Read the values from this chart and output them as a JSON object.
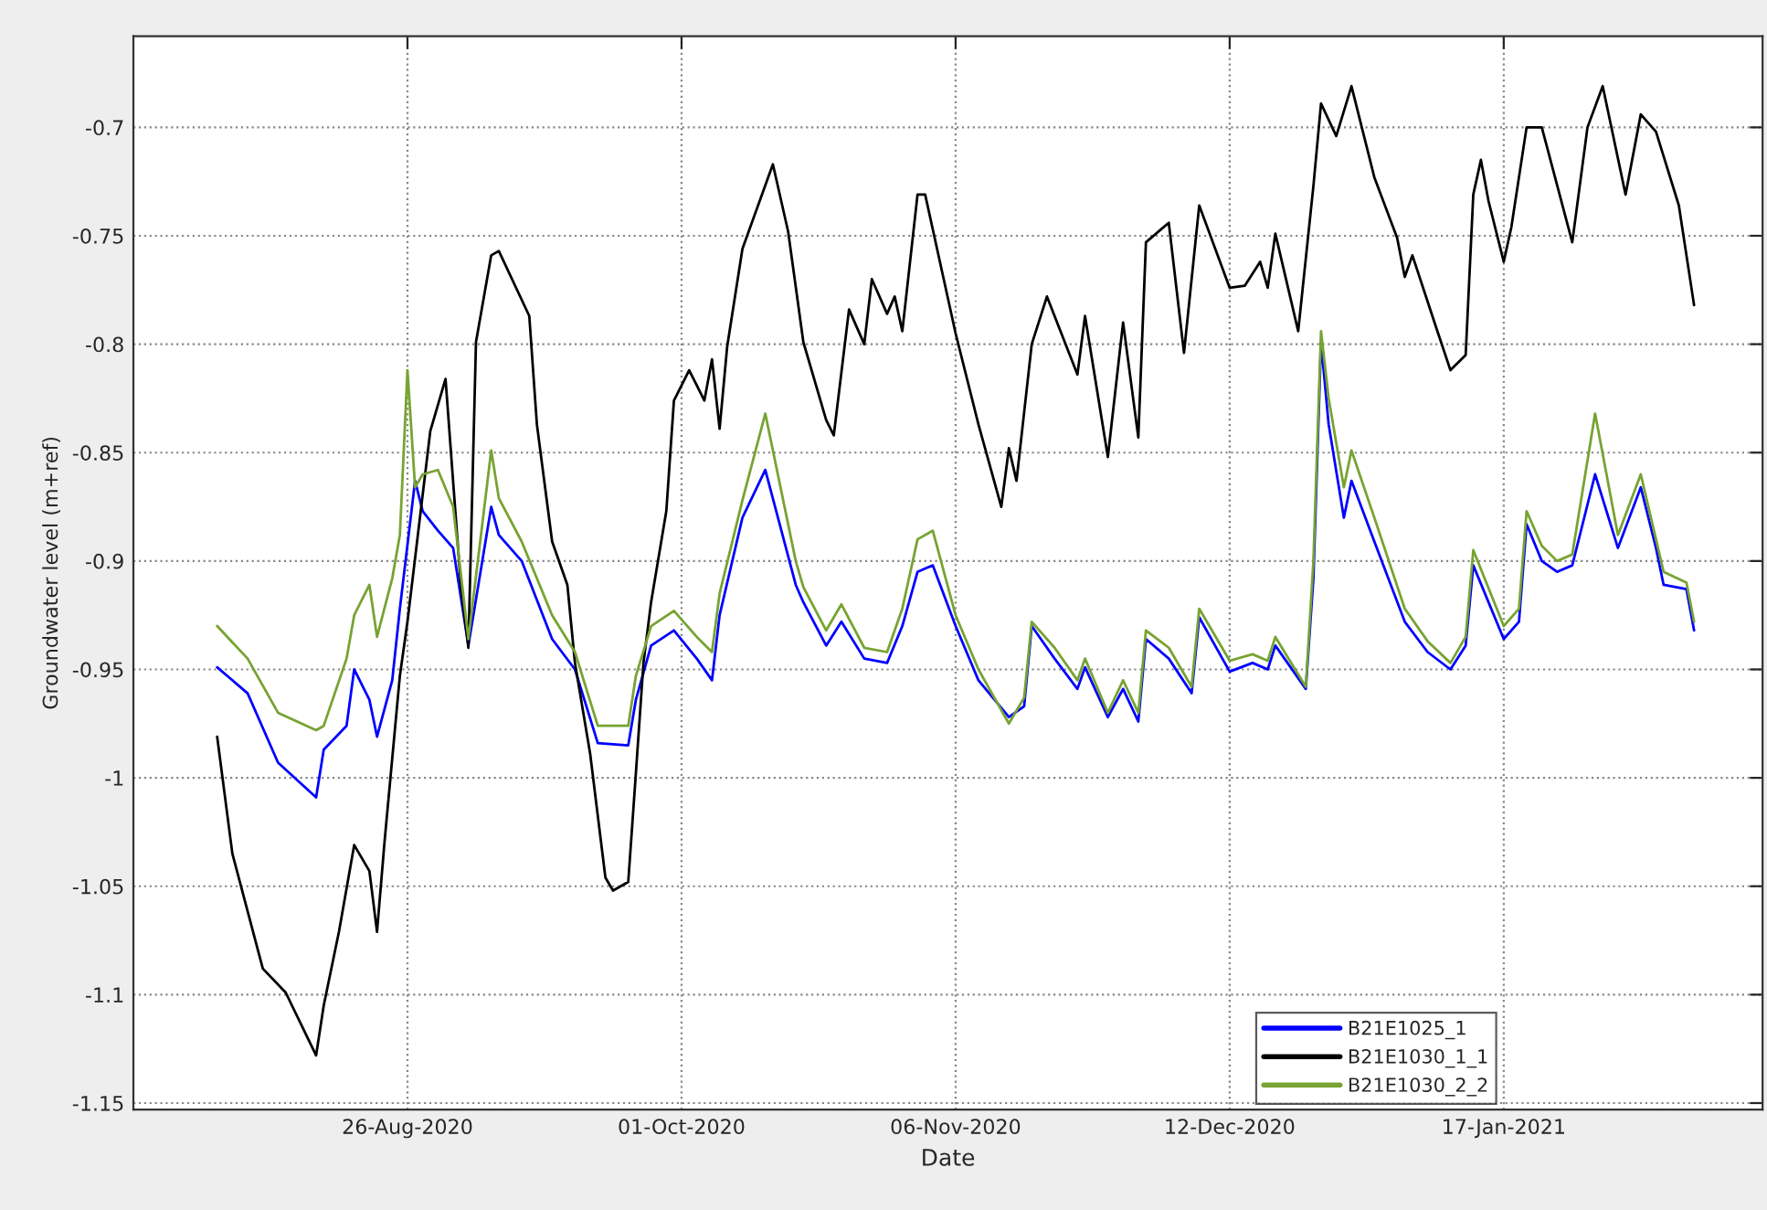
{
  "chart_data": {
    "type": "line",
    "xlabel": "Date",
    "ylabel": "Groundwater level (m+ref)",
    "xlim": [
      "2020-07-21",
      "2021-02-20"
    ],
    "ylim": [
      -1.153,
      -0.658
    ],
    "xticks": [
      {
        "value": "2020-08-26",
        "label": "26-Aug-2020"
      },
      {
        "value": "2020-10-01",
        "label": "01-Oct-2020"
      },
      {
        "value": "2020-11-06",
        "label": "06-Nov-2020"
      },
      {
        "value": "2020-12-12",
        "label": "12-Dec-2020"
      },
      {
        "value": "2021-01-17",
        "label": "17-Jan-2021"
      }
    ],
    "yticks": [
      -1.15,
      -1.1,
      -1.05,
      -1,
      -0.95,
      -0.9,
      -0.85,
      -0.8,
      -0.75,
      -0.7
    ],
    "grid": true,
    "legend": "bottom right",
    "line_style": "solid",
    "series": [
      {
        "name": "B21E1025_1",
        "color": "#0000ff",
        "x": [
          "2020-08-01",
          "2020-08-05",
          "2020-08-09",
          "2020-08-14",
          "2020-08-15",
          "2020-08-18",
          "2020-08-19",
          "2020-08-21",
          "2020-08-22",
          "2020-08-24",
          "2020-08-25",
          "2020-08-27",
          "2020-08-28",
          "2020-08-30",
          "2020-09-01",
          "2020-09-03",
          "2020-09-06",
          "2020-09-07",
          "2020-09-10",
          "2020-09-14",
          "2020-09-17",
          "2020-09-20",
          "2020-09-24",
          "2020-09-25",
          "2020-09-27",
          "2020-09-30",
          "2020-10-03",
          "2020-10-05",
          "2020-10-06",
          "2020-10-09",
          "2020-10-12",
          "2020-10-16",
          "2020-10-17",
          "2020-10-20",
          "2020-10-22",
          "2020-10-25",
          "2020-10-28",
          "2020-10-30",
          "2020-11-01",
          "2020-11-03",
          "2020-11-06",
          "2020-11-09",
          "2020-11-13",
          "2020-11-15",
          "2020-11-16",
          "2020-11-19",
          "2020-11-22",
          "2020-11-23",
          "2020-11-26",
          "2020-11-28",
          "2020-11-30",
          "2020-12-01",
          "2020-12-04",
          "2020-12-07",
          "2020-12-08",
          "2020-12-12",
          "2020-12-15",
          "2020-12-17",
          "2020-12-18",
          "2020-12-22",
          "2020-12-23",
          "2020-12-24",
          "2020-12-25",
          "2020-12-27",
          "2020-12-28",
          "2020-12-31",
          "2021-01-04",
          "2021-01-07",
          "2021-01-10",
          "2021-01-12",
          "2021-01-13",
          "2021-01-17",
          "2021-01-19",
          "2021-01-20",
          "2021-01-22",
          "2021-01-24",
          "2021-01-26",
          "2021-01-29",
          "2021-02-01",
          "2021-02-04",
          "2021-02-06",
          "2021-02-07",
          "2021-02-10",
          "2021-02-11"
        ],
        "values": [
          -0.949,
          -0.961,
          -0.993,
          -1.009,
          -0.987,
          -0.976,
          -0.95,
          -0.964,
          -0.981,
          -0.955,
          -0.922,
          -0.863,
          -0.877,
          -0.886,
          -0.894,
          -0.939,
          -0.875,
          -0.888,
          -0.9,
          -0.936,
          -0.95,
          -0.984,
          -0.985,
          -0.964,
          -0.939,
          -0.932,
          -0.945,
          -0.955,
          -0.925,
          -0.88,
          -0.858,
          -0.911,
          -0.919,
          -0.939,
          -0.928,
          -0.945,
          -0.947,
          -0.93,
          -0.905,
          -0.902,
          -0.93,
          -0.955,
          -0.972,
          -0.967,
          -0.93,
          -0.945,
          -0.959,
          -0.949,
          -0.972,
          -0.959,
          -0.974,
          -0.936,
          -0.945,
          -0.961,
          -0.926,
          -0.951,
          -0.947,
          -0.95,
          -0.939,
          -0.959,
          -0.908,
          -0.799,
          -0.837,
          -0.88,
          -0.863,
          -0.891,
          -0.928,
          -0.942,
          -0.95,
          -0.939,
          -0.902,
          -0.936,
          -0.928,
          -0.883,
          -0.9,
          -0.905,
          -0.902,
          -0.86,
          -0.894,
          -0.866,
          -0.894,
          -0.911,
          -0.913,
          -0.932
        ]
      },
      {
        "name": "B21E1030_1_1",
        "color": "#000000",
        "x": [
          "2020-08-01",
          "2020-08-03",
          "2020-08-07",
          "2020-08-10",
          "2020-08-14",
          "2020-08-15",
          "2020-08-17",
          "2020-08-19",
          "2020-08-21",
          "2020-08-22",
          "2020-08-23",
          "2020-08-25",
          "2020-08-26",
          "2020-08-29",
          "2020-08-31",
          "2020-09-02",
          "2020-09-03",
          "2020-09-04",
          "2020-09-06",
          "2020-09-07",
          "2020-09-11",
          "2020-09-12",
          "2020-09-14",
          "2020-09-16",
          "2020-09-17",
          "2020-09-19",
          "2020-09-21",
          "2020-09-22",
          "2020-09-24",
          "2020-09-25",
          "2020-09-26",
          "2020-09-27",
          "2020-09-29",
          "2020-09-30",
          "2020-10-02",
          "2020-10-04",
          "2020-10-05",
          "2020-10-06",
          "2020-10-07",
          "2020-10-09",
          "2020-10-13",
          "2020-10-15",
          "2020-10-17",
          "2020-10-20",
          "2020-10-21",
          "2020-10-23",
          "2020-10-25",
          "2020-10-26",
          "2020-10-28",
          "2020-10-29",
          "2020-10-30",
          "2020-11-01",
          "2020-11-02",
          "2020-11-06",
          "2020-11-09",
          "2020-11-12",
          "2020-11-13",
          "2020-11-14",
          "2020-11-16",
          "2020-11-18",
          "2020-11-22",
          "2020-11-23",
          "2020-11-26",
          "2020-11-28",
          "2020-11-30",
          "2020-12-01",
          "2020-12-04",
          "2020-12-06",
          "2020-12-08",
          "2020-12-12",
          "2020-12-14",
          "2020-12-16",
          "2020-12-17",
          "2020-12-18",
          "2020-12-21",
          "2020-12-23",
          "2020-12-24",
          "2020-12-26",
          "2020-12-28",
          "2020-12-31",
          "2021-01-03",
          "2021-01-04",
          "2021-01-05",
          "2021-01-08",
          "2021-01-10",
          "2021-01-12",
          "2021-01-13",
          "2021-01-14",
          "2021-01-15",
          "2021-01-17",
          "2021-01-18",
          "2021-01-20",
          "2021-01-22",
          "2021-01-26",
          "2021-01-28",
          "2021-01-30",
          "2021-02-02",
          "2021-02-04",
          "2021-02-06",
          "2021-02-09",
          "2021-02-11"
        ],
        "values": [
          -0.981,
          -1.035,
          -1.088,
          -1.099,
          -1.128,
          -1.105,
          -1.071,
          -1.031,
          -1.043,
          -1.071,
          -1.029,
          -0.953,
          -0.928,
          -0.84,
          -0.816,
          -0.911,
          -0.94,
          -0.799,
          -0.759,
          -0.757,
          -0.787,
          -0.837,
          -0.891,
          -0.911,
          -0.947,
          -0.989,
          -1.046,
          -1.052,
          -1.048,
          -0.998,
          -0.947,
          -0.919,
          -0.877,
          -0.826,
          -0.812,
          -0.826,
          -0.807,
          -0.839,
          -0.801,
          -0.756,
          -0.717,
          -0.748,
          -0.799,
          -0.835,
          -0.842,
          -0.784,
          -0.8,
          -0.77,
          -0.786,
          -0.778,
          -0.794,
          -0.731,
          -0.731,
          -0.795,
          -0.837,
          -0.875,
          -0.848,
          -0.863,
          -0.8,
          -0.778,
          -0.814,
          -0.787,
          -0.852,
          -0.79,
          -0.843,
          -0.753,
          -0.744,
          -0.804,
          -0.736,
          -0.774,
          -0.773,
          -0.762,
          -0.774,
          -0.749,
          -0.794,
          -0.727,
          -0.689,
          -0.704,
          -0.681,
          -0.723,
          -0.751,
          -0.769,
          -0.759,
          -0.791,
          -0.812,
          -0.805,
          -0.731,
          -0.715,
          -0.734,
          -0.762,
          -0.746,
          -0.7,
          -0.7,
          -0.753,
          -0.7,
          -0.681,
          -0.731,
          -0.694,
          -0.702,
          -0.736,
          -0.782
        ]
      },
      {
        "name": "B21E1030_2_2",
        "color": "#77a332",
        "x": [
          "2020-08-01",
          "2020-08-05",
          "2020-08-09",
          "2020-08-14",
          "2020-08-15",
          "2020-08-18",
          "2020-08-19",
          "2020-08-21",
          "2020-08-22",
          "2020-08-24",
          "2020-08-25",
          "2020-08-26",
          "2020-08-27",
          "2020-08-28",
          "2020-08-30",
          "2020-09-01",
          "2020-09-03",
          "2020-09-06",
          "2020-09-07",
          "2020-09-10",
          "2020-09-14",
          "2020-09-17",
          "2020-09-20",
          "2020-09-24",
          "2020-09-25",
          "2020-09-27",
          "2020-09-30",
          "2020-10-03",
          "2020-10-05",
          "2020-10-06",
          "2020-10-09",
          "2020-10-12",
          "2020-10-16",
          "2020-10-17",
          "2020-10-20",
          "2020-10-22",
          "2020-10-25",
          "2020-10-28",
          "2020-10-30",
          "2020-11-01",
          "2020-11-03",
          "2020-11-06",
          "2020-11-09",
          "2020-11-13",
          "2020-11-15",
          "2020-11-16",
          "2020-11-19",
          "2020-11-22",
          "2020-11-23",
          "2020-11-26",
          "2020-11-28",
          "2020-11-30",
          "2020-12-01",
          "2020-12-04",
          "2020-12-07",
          "2020-12-08",
          "2020-12-12",
          "2020-12-15",
          "2020-12-17",
          "2020-12-18",
          "2020-12-22",
          "2020-12-23",
          "2020-12-24",
          "2020-12-25",
          "2020-12-27",
          "2020-12-28",
          "2020-12-31",
          "2021-01-04",
          "2021-01-07",
          "2021-01-10",
          "2021-01-12",
          "2021-01-13",
          "2021-01-17",
          "2021-01-19",
          "2021-01-20",
          "2021-01-22",
          "2021-01-24",
          "2021-01-26",
          "2021-01-29",
          "2021-02-01",
          "2021-02-04",
          "2021-02-06",
          "2021-02-07",
          "2021-02-10",
          "2021-02-11"
        ],
        "values": [
          -0.93,
          -0.945,
          -0.97,
          -0.978,
          -0.976,
          -0.945,
          -0.925,
          -0.911,
          -0.935,
          -0.908,
          -0.888,
          -0.812,
          -0.866,
          -0.86,
          -0.858,
          -0.875,
          -0.936,
          -0.849,
          -0.871,
          -0.891,
          -0.925,
          -0.942,
          -0.976,
          -0.976,
          -0.953,
          -0.93,
          -0.923,
          -0.935,
          -0.942,
          -0.915,
          -0.872,
          -0.832,
          -0.9,
          -0.912,
          -0.932,
          -0.92,
          -0.94,
          -0.942,
          -0.922,
          -0.89,
          -0.886,
          -0.925,
          -0.95,
          -0.975,
          -0.963,
          -0.928,
          -0.94,
          -0.955,
          -0.945,
          -0.97,
          -0.955,
          -0.97,
          -0.932,
          -0.94,
          -0.958,
          -0.922,
          -0.946,
          -0.943,
          -0.946,
          -0.935,
          -0.958,
          -0.9,
          -0.794,
          -0.825,
          -0.866,
          -0.849,
          -0.88,
          -0.922,
          -0.937,
          -0.947,
          -0.935,
          -0.895,
          -0.93,
          -0.922,
          -0.877,
          -0.893,
          -0.9,
          -0.897,
          -0.832,
          -0.888,
          -0.86,
          -0.89,
          -0.905,
          -0.91,
          -0.928
        ]
      }
    ]
  }
}
